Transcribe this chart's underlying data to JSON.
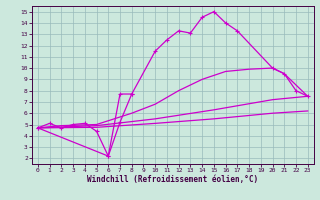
{
  "xlabel": "Windchill (Refroidissement éolien,°C)",
  "bg_color": "#cce8dd",
  "grid_color": "#99bbbb",
  "line_color": "#cc00cc",
  "spine_color": "#440044",
  "xlim": [
    -0.5,
    23.5
  ],
  "ylim": [
    1.5,
    15.5
  ],
  "xticks": [
    0,
    1,
    2,
    3,
    4,
    5,
    6,
    7,
    8,
    9,
    10,
    11,
    12,
    13,
    14,
    15,
    16,
    17,
    18,
    19,
    20,
    21,
    22,
    23
  ],
  "yticks": [
    2,
    3,
    4,
    5,
    6,
    7,
    8,
    9,
    10,
    11,
    12,
    13,
    14,
    15
  ],
  "line1_x": [
    0,
    1,
    2,
    3,
    4,
    5,
    6,
    7,
    8
  ],
  "line1_y": [
    4.7,
    5.1,
    4.7,
    5.0,
    5.1,
    4.4,
    2.2,
    7.7,
    7.7
  ],
  "line2_x": [
    0,
    6,
    7,
    8,
    10,
    11,
    12,
    13,
    14,
    15,
    16,
    17,
    20,
    21,
    22,
    23
  ],
  "line2_y": [
    4.7,
    2.2,
    5.2,
    7.7,
    11.5,
    12.5,
    13.3,
    13.1,
    14.5,
    15.0,
    14.0,
    13.3,
    10.0,
    9.5,
    8.0,
    7.5
  ],
  "line3_x": [
    0,
    2,
    5,
    8,
    10,
    12,
    14,
    16,
    18,
    20,
    21,
    22,
    23
  ],
  "line3_y": [
    4.7,
    4.9,
    5.0,
    6.0,
    6.8,
    8.0,
    9.0,
    9.7,
    9.9,
    10.0,
    9.5,
    8.5,
    7.5
  ],
  "line4_x": [
    0,
    5,
    10,
    15,
    20,
    23
  ],
  "line4_y": [
    4.7,
    4.9,
    5.5,
    6.3,
    7.2,
    7.5
  ],
  "line5_x": [
    0,
    5,
    10,
    15,
    20,
    23
  ],
  "line5_y": [
    4.7,
    4.75,
    5.1,
    5.5,
    6.0,
    6.2
  ],
  "tick_fontsize": 4.5,
  "xlabel_fontsize": 5.5,
  "lw": 0.9,
  "marker_size": 3
}
